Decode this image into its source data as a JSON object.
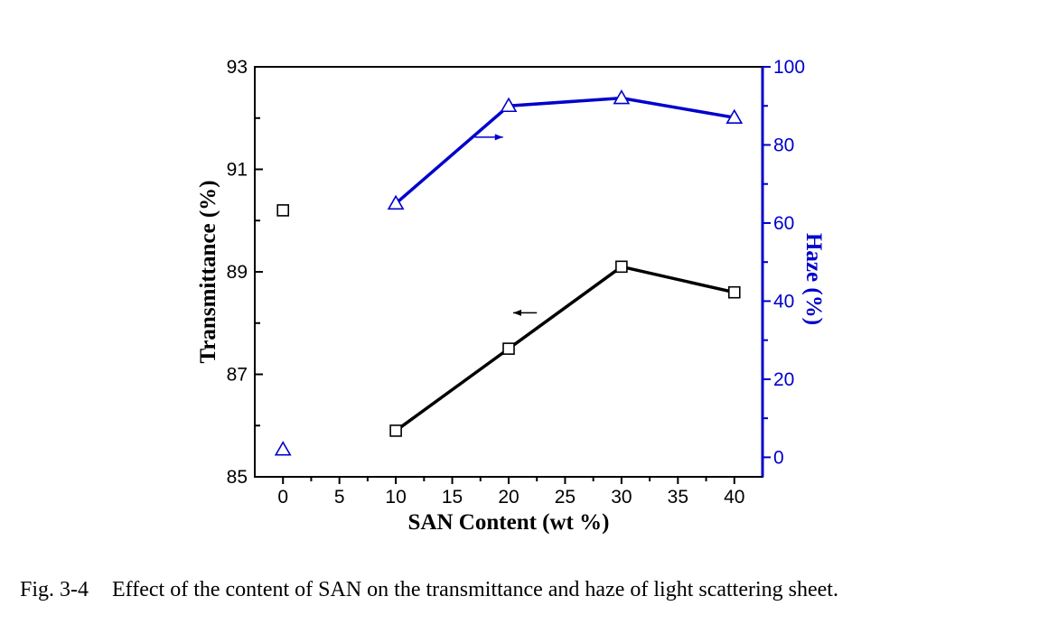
{
  "chart_data": {
    "type": "line",
    "xlabel": "SAN Content (wt %)",
    "ylabel": "Transmittance (%)",
    "y2label": "Haze (%)",
    "xlim": [
      -2.5,
      42.5
    ],
    "ylim": [
      85,
      93
    ],
    "y2lim": [
      -5,
      100
    ],
    "x_ticks": [
      0,
      5,
      10,
      15,
      20,
      25,
      30,
      35,
      40
    ],
    "y_ticks": [
      85,
      87,
      89,
      91,
      93
    ],
    "y2_ticks": [
      0,
      20,
      40,
      60,
      80,
      100
    ],
    "grid": false,
    "series": [
      {
        "axis": "left",
        "marker": "square",
        "color": "#000000",
        "x": [
          0,
          10,
          20,
          30,
          40
        ],
        "values": [
          90.2,
          85.9,
          87.5,
          89.1,
          88.6
        ],
        "connected_from_index": 1
      },
      {
        "axis": "right",
        "marker": "triangle",
        "color": "#0000cc",
        "x": [
          0,
          10,
          20,
          30,
          40
        ],
        "values": [
          2,
          65,
          90,
          92,
          87
        ],
        "connected_from_index": 1
      }
    ],
    "annotations": [
      {
        "type": "arrow",
        "direction": "left",
        "series_axis": "left",
        "x_from": 22.5,
        "x_to": 20.4,
        "y": 88.2
      },
      {
        "type": "arrow",
        "direction": "right",
        "series_axis": "right",
        "x_from": 17,
        "x_to": 19.5,
        "y": 82
      }
    ]
  },
  "caption": {
    "number": "Fig. 3-4",
    "text": "Effect of the content of SAN on the transmittance and haze of light scattering sheet."
  }
}
